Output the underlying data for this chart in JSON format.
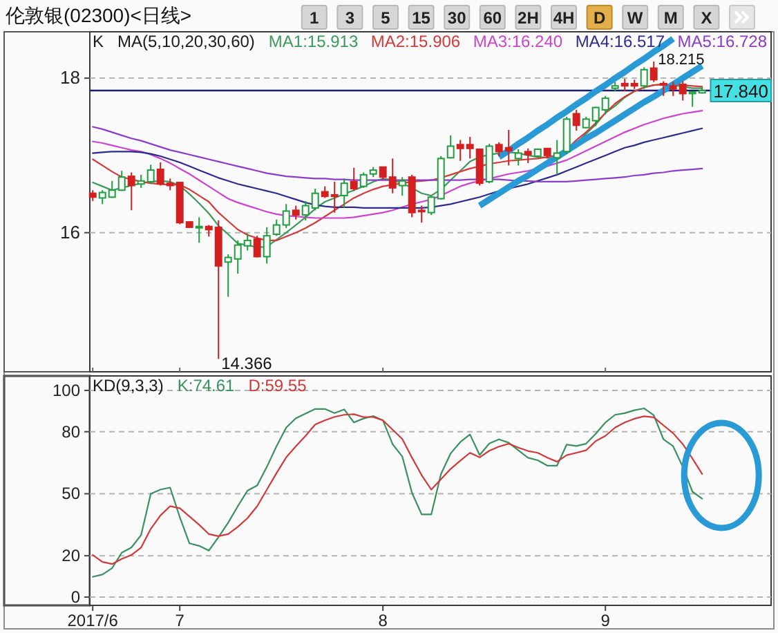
{
  "chart_data": [
    {
      "type": "candlestick",
      "title": "伦敦银(02300)<日线>",
      "categories": [
        "2017/6",
        null,
        null,
        null,
        null,
        null,
        null,
        null,
        null,
        "7",
        null,
        null,
        null,
        null,
        null,
        null,
        null,
        null,
        null,
        null,
        null,
        null,
        null,
        null,
        null,
        null,
        null,
        null,
        null,
        null,
        "8",
        null,
        null,
        null,
        null,
        null,
        null,
        null,
        null,
        null,
        null,
        null,
        null,
        null,
        null,
        null,
        null,
        null,
        null,
        null,
        null,
        null,
        null,
        "9",
        null,
        null,
        null,
        null,
        null,
        null,
        null,
        null,
        null,
        null
      ],
      "ohlc": [
        [
          16.51,
          16.55,
          16.41,
          16.46
        ],
        [
          16.45,
          16.55,
          16.37,
          16.52
        ],
        [
          16.46,
          16.67,
          16.45,
          16.55
        ],
        [
          16.55,
          16.8,
          16.54,
          16.72
        ],
        [
          16.73,
          16.78,
          16.29,
          16.61
        ],
        [
          16.63,
          16.75,
          16.58,
          16.67
        ],
        [
          16.66,
          16.88,
          16.63,
          16.81
        ],
        [
          16.82,
          16.91,
          16.61,
          16.63
        ],
        [
          16.64,
          16.7,
          16.55,
          16.61
        ],
        [
          16.65,
          16.66,
          16.11,
          16.13
        ],
        [
          16.14,
          16.15,
          16.06,
          16.07
        ],
        [
          16.07,
          16.2,
          15.87,
          16.08
        ],
        [
          16.08,
          16.1,
          15.95,
          16.04
        ],
        [
          16.07,
          16.16,
          14.366,
          15.57
        ],
        [
          15.62,
          15.72,
          15.17,
          15.68
        ],
        [
          15.66,
          15.9,
          15.47,
          15.84
        ],
        [
          15.83,
          15.99,
          15.77,
          15.9
        ],
        [
          15.92,
          15.96,
          15.68,
          15.69
        ],
        [
          15.69,
          16.07,
          15.6,
          15.96
        ],
        [
          15.98,
          16.17,
          15.96,
          16.1
        ],
        [
          16.1,
          16.37,
          16.06,
          16.28
        ],
        [
          16.29,
          16.35,
          16.17,
          16.23
        ],
        [
          16.23,
          16.41,
          16.16,
          16.35
        ],
        [
          16.32,
          16.57,
          16.29,
          16.51
        ],
        [
          16.53,
          16.6,
          16.45,
          16.47
        ],
        [
          16.49,
          16.66,
          16.26,
          16.47
        ],
        [
          16.48,
          16.7,
          16.32,
          16.64
        ],
        [
          16.66,
          16.84,
          16.54,
          16.57
        ],
        [
          16.6,
          16.78,
          16.58,
          16.75
        ],
        [
          16.76,
          16.85,
          16.72,
          16.81
        ],
        [
          16.85,
          16.85,
          16.69,
          16.72
        ],
        [
          16.72,
          16.96,
          16.51,
          16.58
        ],
        [
          16.61,
          16.72,
          16.48,
          16.67
        ],
        [
          16.72,
          16.75,
          16.2,
          16.26
        ],
        [
          16.29,
          16.35,
          16.13,
          16.28
        ],
        [
          16.26,
          16.47,
          16.23,
          16.46
        ],
        [
          16.44,
          16.99,
          16.43,
          16.96
        ],
        [
          16.97,
          17.26,
          16.96,
          17.12
        ],
        [
          17.14,
          17.2,
          16.93,
          17.09
        ],
        [
          17.14,
          17.24,
          16.96,
          17.09
        ],
        [
          17.08,
          17.08,
          16.61,
          16.64
        ],
        [
          16.66,
          17.15,
          16.64,
          17.12
        ],
        [
          17.14,
          17.17,
          16.99,
          17.05
        ],
        [
          17.1,
          17.33,
          16.87,
          17.06
        ],
        [
          16.96,
          17.08,
          16.87,
          17.03
        ],
        [
          17.05,
          17.09,
          16.9,
          17.01
        ],
        [
          16.99,
          17.09,
          16.97,
          17.08
        ],
        [
          17.09,
          17.09,
          16.96,
          17.0
        ],
        [
          16.97,
          17.2,
          16.75,
          17.03
        ],
        [
          17.05,
          17.5,
          17.02,
          17.47
        ],
        [
          17.54,
          17.59,
          17.32,
          17.39
        ],
        [
          17.36,
          17.5,
          17.35,
          17.47
        ],
        [
          17.45,
          17.63,
          17.38,
          17.62
        ],
        [
          17.59,
          17.77,
          17.53,
          17.74
        ],
        [
          17.87,
          17.95,
          17.83,
          17.9
        ],
        [
          17.93,
          17.99,
          17.83,
          17.9
        ],
        [
          17.93,
          17.98,
          17.86,
          17.9
        ],
        [
          17.9,
          18.14,
          17.86,
          18.11
        ],
        [
          18.13,
          18.215,
          17.95,
          17.98
        ],
        [
          17.93,
          17.96,
          17.77,
          17.91
        ],
        [
          17.9,
          17.95,
          17.77,
          17.86
        ],
        [
          17.92,
          17.96,
          17.71,
          17.8
        ],
        [
          17.8,
          17.83,
          17.63,
          17.82
        ],
        [
          17.81,
          17.89,
          17.8,
          17.84
        ]
      ],
      "colors": [
        "#d42020",
        "#1f9e3f",
        "#1f9e3f",
        "#1f9e3f",
        "#d42020",
        "#1f9e3f",
        "#1f9e3f",
        "#d42020",
        "#d42020",
        "#d42020",
        "#d42020",
        "#1f9e3f",
        "#d42020",
        "#d42020",
        "#1f9e3f",
        "#1f9e3f",
        "#1f9e3f",
        "#d42020",
        "#1f9e3f",
        "#1f9e3f",
        "#1f9e3f",
        "#d42020",
        "#1f9e3f",
        "#1f9e3f",
        "#d42020",
        "#d42020",
        "#1f9e3f",
        "#d42020",
        "#1f9e3f",
        "#1f9e3f",
        "#d42020",
        "#d42020",
        "#1f9e3f",
        "#d42020",
        "#d42020",
        "#1f9e3f",
        "#1f9e3f",
        "#1f9e3f",
        "#d42020",
        "#d42020",
        "#d42020",
        "#1f9e3f",
        "#d42020",
        "#d42020",
        "#1f9e3f",
        "#d42020",
        "#1f9e3f",
        "#d42020",
        "#1f9e3f",
        "#1f9e3f",
        "#d42020",
        "#1f9e3f",
        "#1f9e3f",
        "#1f9e3f",
        "#1f9e3f",
        "#d42020",
        "#d42020",
        "#1f9e3f",
        "#d42020",
        "#d42020",
        "#d42020",
        "#d42020",
        "#1f9e3f",
        "#1f9e3f"
      ],
      "series": [
        {
          "type": "line",
          "name": "MA1:15.913",
          "color": "#3c9a5f",
          "values": [
            16.65,
            16.6,
            16.55,
            16.58,
            16.61,
            16.64,
            16.66,
            16.67,
            16.66,
            16.61,
            16.5,
            16.38,
            16.25,
            16.09,
            15.98,
            15.86,
            15.84,
            15.81,
            15.82,
            15.91,
            16.0,
            16.1,
            16.2,
            16.31,
            16.4,
            16.45,
            16.5,
            16.55,
            16.6,
            16.66,
            16.7,
            16.68,
            16.64,
            16.58,
            16.51,
            16.48,
            16.56,
            16.68,
            16.8,
            16.92,
            16.98,
            17.01,
            17.03,
            17.04,
            17.03,
            17.0,
            16.98,
            16.97,
            16.96,
            17.04,
            17.16,
            17.28,
            17.4,
            17.55,
            17.64,
            17.75,
            17.83,
            17.88,
            17.91,
            17.92,
            17.91,
            17.89,
            17.87,
            17.87
          ]
        },
        {
          "type": "line",
          "name": "MA2:15.906",
          "color": "#d43a3a",
          "values": [
            16.95,
            16.87,
            16.79,
            16.72,
            16.69,
            16.66,
            16.64,
            16.63,
            16.62,
            16.62,
            16.56,
            16.48,
            16.4,
            16.26,
            16.15,
            16.04,
            15.97,
            15.93,
            15.9,
            15.9,
            15.95,
            16.0,
            16.06,
            16.13,
            16.21,
            16.29,
            16.37,
            16.45,
            16.51,
            16.56,
            16.6,
            16.62,
            16.64,
            16.66,
            16.67,
            16.68,
            16.71,
            16.75,
            16.79,
            16.83,
            16.86,
            16.89,
            16.91,
            16.93,
            16.94,
            16.95,
            16.96,
            16.98,
            17.0,
            17.08,
            17.2,
            17.3,
            17.42,
            17.55,
            17.67,
            17.76,
            17.83,
            17.88,
            17.91,
            17.92,
            17.92,
            17.91,
            17.9,
            17.89
          ]
        },
        {
          "type": "line",
          "name": "MA3:16.240",
          "color": "#cc44cc",
          "values": [
            17.18,
            17.16,
            17.13,
            17.1,
            17.07,
            17.05,
            17.01,
            16.96,
            16.9,
            16.83,
            16.76,
            16.68,
            16.6,
            16.52,
            16.44,
            16.39,
            16.35,
            16.31,
            16.27,
            16.24,
            16.22,
            16.21,
            16.2,
            16.19,
            16.19,
            16.19,
            16.19,
            16.2,
            16.22,
            16.24,
            16.26,
            16.29,
            16.33,
            16.37,
            16.4,
            16.43,
            16.48,
            16.54,
            16.6,
            16.64,
            16.67,
            16.7,
            16.73,
            16.76,
            16.78,
            16.8,
            16.83,
            16.86,
            16.9,
            16.94,
            17.0,
            17.06,
            17.12,
            17.18,
            17.24,
            17.3,
            17.35,
            17.4,
            17.44,
            17.48,
            17.51,
            17.54,
            17.56,
            17.58
          ]
        },
        {
          "type": "line",
          "name": "MA4:16.517",
          "color": "#2c2c8c",
          "values": [
            17.03,
            17.04,
            17.05,
            17.05,
            17.05,
            17.04,
            17.02,
            16.99,
            16.95,
            16.91,
            16.86,
            16.81,
            16.76,
            16.71,
            16.67,
            16.63,
            16.6,
            16.57,
            16.54,
            16.51,
            16.47,
            16.43,
            16.39,
            16.36,
            16.34,
            16.33,
            16.33,
            16.33,
            16.32,
            16.32,
            16.32,
            16.32,
            16.32,
            16.32,
            16.32,
            16.33,
            16.35,
            16.37,
            16.4,
            16.43,
            16.46,
            16.5,
            16.54,
            16.57,
            16.6,
            16.63,
            16.67,
            16.71,
            16.75,
            16.8,
            16.85,
            16.9,
            16.95,
            17.0,
            17.05,
            17.1,
            17.13,
            17.17,
            17.2,
            17.23,
            17.26,
            17.29,
            17.32,
            17.35
          ]
        },
        {
          "type": "line",
          "name": "MA5:16.728",
          "color": "#8c3cc8",
          "values": [
            17.37,
            17.34,
            17.3,
            17.26,
            17.22,
            17.19,
            17.15,
            17.11,
            17.07,
            17.04,
            17.01,
            16.98,
            16.95,
            16.92,
            16.89,
            16.86,
            16.83,
            16.8,
            16.77,
            16.75,
            16.73,
            16.72,
            16.71,
            16.7,
            16.7,
            16.69,
            16.69,
            16.68,
            16.68,
            16.68,
            16.68,
            16.68,
            16.68,
            16.68,
            16.68,
            16.68,
            16.68,
            16.68,
            16.68,
            16.69,
            16.69,
            16.69,
            16.69,
            16.68,
            16.67,
            16.67,
            16.66,
            16.66,
            16.66,
            16.66,
            16.67,
            16.68,
            16.69,
            16.7,
            16.71,
            16.72,
            16.74,
            16.75,
            16.77,
            16.78,
            16.8,
            16.81,
            16.82,
            16.83
          ]
        },
        {
          "type": "line",
          "color": "#2a9ad6",
          "values": [
            null,
            null,
            null,
            null,
            null,
            null,
            null,
            null,
            null,
            null,
            null,
            null,
            null,
            null,
            null,
            null,
            null,
            null,
            null,
            null,
            null,
            null,
            null,
            null,
            null,
            null,
            null,
            null,
            null,
            null,
            null,
            null,
            null,
            null,
            null,
            null,
            null,
            null,
            null,
            null,
            null,
            null,
            16.98,
            17.06,
            17.15,
            17.23,
            17.32,
            17.4,
            17.49,
            17.57,
            17.66,
            17.74,
            17.83,
            17.91,
            18.0,
            18.08,
            18.17,
            18.25,
            18.34,
            18.42,
            18.51,
            null,
            null,
            null
          ]
        },
        {
          "type": "line",
          "color": "#2a9ad6",
          "values": [
            null,
            null,
            null,
            null,
            null,
            null,
            null,
            null,
            null,
            null,
            null,
            null,
            null,
            null,
            null,
            null,
            null,
            null,
            null,
            null,
            null,
            null,
            null,
            null,
            null,
            null,
            null,
            null,
            null,
            null,
            null,
            null,
            null,
            null,
            null,
            null,
            null,
            null,
            null,
            null,
            16.35,
            16.43,
            16.51,
            16.59,
            16.67,
            16.74,
            16.82,
            16.9,
            16.98,
            17.06,
            17.14,
            17.22,
            17.29,
            17.37,
            17.45,
            17.53,
            17.61,
            17.69,
            17.76,
            17.84,
            17.92,
            18.0,
            18.08,
            18.16
          ]
        }
      ],
      "ylim": [
        14.2,
        18.6
      ],
      "yticks": [
        16,
        18
      ],
      "grid": "y",
      "tick_labels": "y",
      "legend": "top",
      "ref_lines": [
        {
          "axis": "y",
          "value": 17.84,
          "label": "17.840",
          "color": "#1c1c6c"
        }
      ],
      "annotations": [
        "K",
        "MA(5,10,20,30,60)",
        "18.215",
        "14.366"
      ]
    },
    {
      "type": "other",
      "annotations": [
        "1",
        "3",
        "5",
        "15",
        "30",
        "60",
        "2H",
        "4H",
        "D",
        "W",
        "M",
        "X"
      ]
    },
    {
      "type": "line",
      "categories": [
        "2017/6",
        null,
        null,
        null,
        null,
        null,
        null,
        null,
        null,
        "7",
        null,
        null,
        null,
        null,
        null,
        null,
        null,
        null,
        null,
        null,
        null,
        null,
        null,
        null,
        null,
        null,
        null,
        null,
        null,
        null,
        "8",
        null,
        null,
        null,
        null,
        null,
        null,
        null,
        null,
        null,
        null,
        null,
        null,
        null,
        null,
        null,
        null,
        null,
        null,
        null,
        null,
        null,
        null,
        "9",
        null,
        null,
        null,
        null,
        null,
        null,
        null,
        null,
        null,
        null
      ],
      "series": [
        {
          "name": "K:74.61",
          "color": "#3a9060",
          "values": [
            9.8,
            10.9,
            14,
            21.5,
            24,
            30,
            50,
            52,
            53,
            38.7,
            26,
            24.8,
            22.5,
            29,
            36,
            44,
            51.5,
            54,
            63,
            73,
            82,
            86.5,
            88.8,
            91,
            91,
            89,
            90.8,
            84.5,
            86.4,
            87.6,
            85.5,
            74,
            68,
            50.5,
            40,
            40,
            59.5,
            69.5,
            75,
            78.7,
            68.7,
            74.3,
            76.3,
            74.7,
            71,
            67.4,
            66.2,
            63.6,
            63.6,
            73.8,
            73.1,
            74.2,
            79,
            84.5,
            88.2,
            89,
            90.4,
            91.3,
            88,
            76.4,
            73,
            63,
            51,
            47.6
          ]
        },
        {
          "name": "D:59.55",
          "color": "#d03a3a",
          "values": [
            20.4,
            17,
            16,
            18.5,
            20.4,
            24,
            33,
            39.5,
            44,
            43,
            39,
            35,
            30.5,
            29.5,
            30.5,
            34,
            38.2,
            44,
            52,
            60,
            67.6,
            73,
            78,
            83.5,
            85.5,
            87.2,
            88.2,
            88.5,
            87.1,
            87.1,
            85.5,
            81,
            76.5,
            67.5,
            59,
            52,
            57,
            62,
            66,
            69.8,
            67.6,
            70.8,
            72.8,
            74.2,
            72.3,
            70.7,
            69.8,
            67.5,
            65.5,
            68.7,
            69.8,
            71,
            75.5,
            78,
            82,
            84.5,
            86.3,
            87.5,
            87,
            83.1,
            79.3,
            74,
            67,
            59.55
          ]
        }
      ],
      "ylim": [
        -4,
        107
      ],
      "yticks": [
        0,
        20,
        50,
        80,
        100
      ],
      "grid": "y",
      "legend": "top left",
      "annotations": [
        "KD(9,3,3)"
      ]
    }
  ]
}
